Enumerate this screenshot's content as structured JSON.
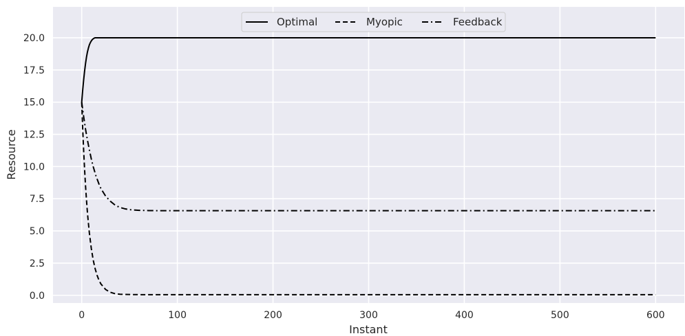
{
  "chart_data": {
    "type": "line",
    "xlabel": "Instant",
    "ylabel": "Resource",
    "xlim": [
      -30,
      630
    ],
    "ylim": [
      -0.6,
      22.4
    ],
    "x_ticks": [
      0,
      100,
      200,
      300,
      400,
      500,
      600
    ],
    "y_ticks": [
      0.0,
      2.5,
      5.0,
      7.5,
      10.0,
      12.5,
      15.0,
      17.5,
      20.0
    ],
    "y_tick_labels": [
      "0.0",
      "2.5",
      "5.0",
      "7.5",
      "10.0",
      "12.5",
      "15.0",
      "17.5",
      "20.0"
    ],
    "grid": true,
    "background": "#eaeaf2",
    "legend_position": "top-center",
    "series": [
      {
        "name": "Optimal",
        "style": "solid",
        "color": "#000000",
        "x": [
          0,
          1,
          2,
          3,
          4,
          5,
          6,
          7,
          8,
          9,
          10,
          11,
          12,
          13,
          14,
          15,
          20,
          50,
          100,
          200,
          300,
          400,
          500,
          600
        ],
        "y": [
          15.0,
          15.9,
          16.7,
          17.4,
          18.0,
          18.5,
          18.9,
          19.2,
          19.45,
          19.62,
          19.75,
          19.85,
          19.92,
          19.97,
          20.0,
          20.0,
          20.0,
          20.0,
          20.0,
          20.0,
          20.0,
          20.0,
          20.0,
          20.0
        ]
      },
      {
        "name": "Myopic",
        "style": "dashed",
        "color": "#000000",
        "x": [
          0,
          1,
          2,
          3,
          4,
          5,
          6,
          7,
          8,
          10,
          12,
          14,
          16,
          18,
          20,
          25,
          30,
          35,
          40,
          50,
          60,
          80,
          100,
          200,
          300,
          400,
          500,
          600
        ],
        "y": [
          15.0,
          13.0,
          11.3,
          9.8,
          8.5,
          7.4,
          6.4,
          5.6,
          4.85,
          3.65,
          2.75,
          2.08,
          1.57,
          1.18,
          0.89,
          0.45,
          0.23,
          0.12,
          0.08,
          0.06,
          0.05,
          0.05,
          0.05,
          0.05,
          0.05,
          0.05,
          0.05,
          0.05
        ]
      },
      {
        "name": "Feedback",
        "style": "dashdot",
        "color": "#000000",
        "x": [
          0,
          2,
          4,
          6,
          8,
          10,
          12,
          15,
          18,
          20,
          25,
          30,
          35,
          40,
          45,
          50,
          60,
          70,
          80,
          100,
          150,
          200,
          300,
          400,
          500,
          600
        ],
        "y": [
          15.0,
          13.9,
          12.9,
          12.05,
          11.3,
          10.6,
          10.0,
          9.25,
          8.65,
          8.3,
          7.7,
          7.3,
          7.0,
          6.82,
          6.72,
          6.65,
          6.6,
          6.58,
          6.57,
          6.57,
          6.57,
          6.57,
          6.57,
          6.57,
          6.57,
          6.57
        ]
      }
    ]
  }
}
